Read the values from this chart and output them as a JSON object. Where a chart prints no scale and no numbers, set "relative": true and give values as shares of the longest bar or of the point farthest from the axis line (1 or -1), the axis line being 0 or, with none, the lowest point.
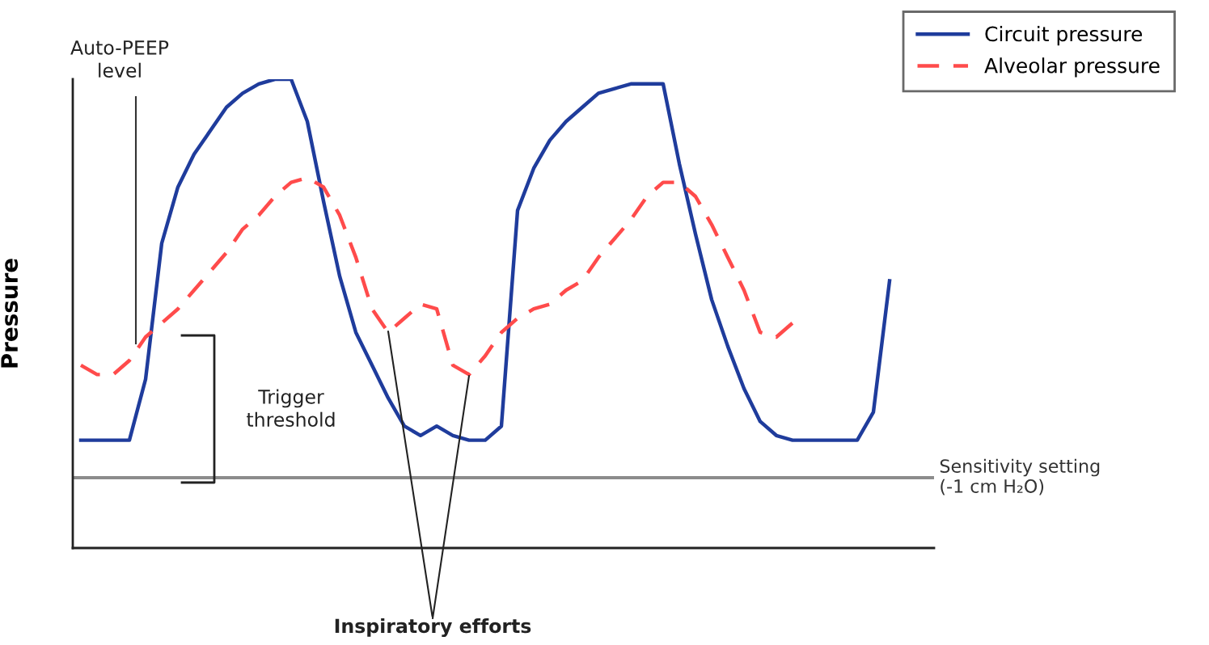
{
  "chart_data": {
    "type": "line",
    "relative": true,
    "ylabel": "Pressure",
    "legend": "top right",
    "marker": "none",
    "categories": [
      null,
      null,
      null,
      null,
      null,
      null,
      null,
      null,
      null,
      null,
      null,
      null,
      null,
      null,
      null,
      null,
      null,
      null,
      null,
      null,
      null,
      null,
      null,
      null,
      null,
      null,
      null,
      null,
      null,
      null,
      null,
      null,
      null,
      null,
      null,
      null,
      null,
      null,
      null,
      null,
      null,
      null,
      null,
      null,
      null,
      null,
      null,
      null,
      null,
      null,
      null
    ],
    "series": [
      {
        "name": "Circuit pressure",
        "color": "#1f3c9c",
        "line_style": "solid",
        "values": [
          0.23,
          0.23,
          0.23,
          0.23,
          0.36,
          0.65,
          0.77,
          0.84,
          0.89,
          0.94,
          0.97,
          0.99,
          1.0,
          1.0,
          0.91,
          0.74,
          0.58,
          0.46,
          0.39,
          0.32,
          0.26,
          0.24,
          0.26,
          0.24,
          0.23,
          0.23,
          0.26,
          0.72,
          0.81,
          0.87,
          0.91,
          0.94,
          0.97,
          0.98,
          0.99,
          0.99,
          0.99,
          0.82,
          0.67,
          0.53,
          0.43,
          0.34,
          0.27,
          0.24,
          0.23,
          0.23,
          0.23,
          0.23,
          0.23,
          0.29,
          0.57
        ]
      },
      {
        "name": "Alveolar pressure",
        "color": "#ff4b4b",
        "line_style": "dashed",
        "values": [
          0.39,
          0.37,
          0.37,
          0.4,
          0.45,
          0.48,
          0.51,
          0.55,
          0.59,
          0.63,
          0.68,
          0.71,
          0.75,
          0.78,
          0.79,
          0.77,
          0.71,
          0.62,
          0.51,
          0.46,
          0.49,
          0.52,
          0.51,
          0.39,
          0.37,
          0.41,
          0.46,
          0.49,
          0.51,
          0.52,
          0.55,
          0.57,
          0.62,
          0.66,
          0.7,
          0.75,
          0.78,
          0.78,
          0.75,
          0.69,
          0.62,
          0.55,
          0.46,
          0.45,
          0.48,
          null,
          null,
          null,
          null,
          null,
          null
        ]
      }
    ],
    "ref_lines": [
      {
        "axis": "y",
        "value": 0.15,
        "label": "Sensitivity setting\n(-1 cm H₂O)",
        "color": "#8c8c8c",
        "line_style": "solid"
      }
    ],
    "annotations": [
      "Auto-PEEP\nlevel",
      "Trigger\nthreshold",
      "Inspiratory efforts"
    ]
  }
}
